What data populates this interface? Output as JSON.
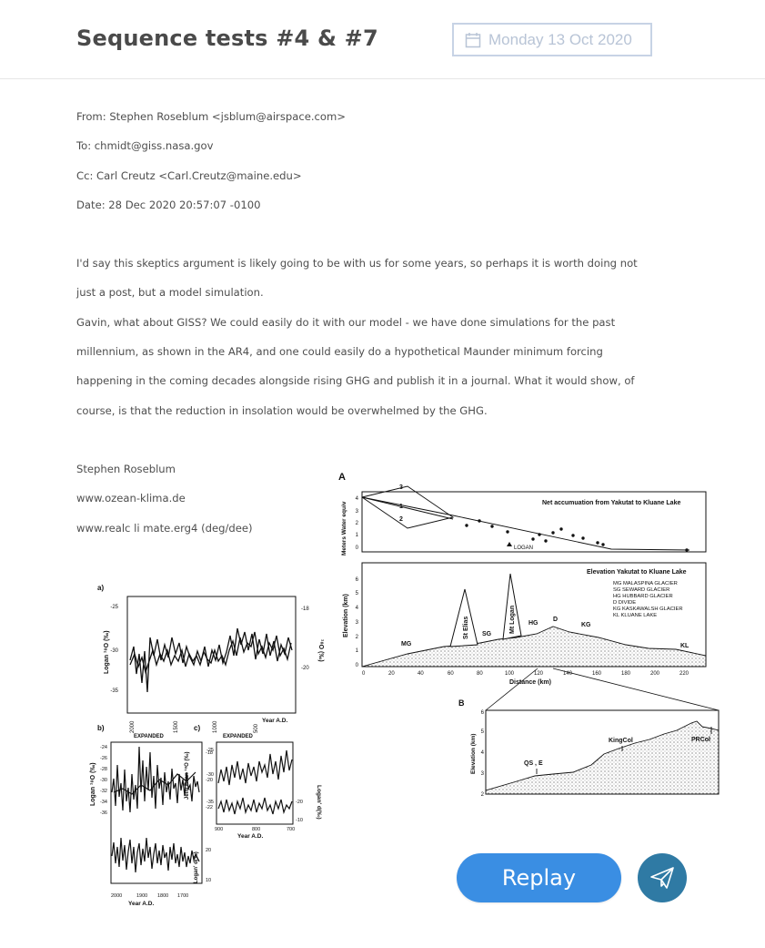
{
  "header": {
    "title": "Sequence tests #4 & #7",
    "date": "Monday 13 Oct 2020"
  },
  "email": {
    "from": "From: Stephen Roseblum <jsblum@airspace.com>",
    "to": "To: chmidt@giss.nasa.gov",
    "cc": "Cc: Carl Creutz <Carl.Creutz@maine.edu>",
    "date": "Date: 28 Dec 2020 20:57:07 -0100",
    "body": [
      "I'd say this skeptics argument is likely going to be with us for some years, so perhaps it is worth doing not",
      "just a post, but a model simulation.",
      "Gavin, what about GISS? We could easily do it with our model - we have done simulations for the past",
      "millennium, as shown in the AR4, and one could easily do a hypothetical Maunder minimum forcing",
      "happening in the coming decades alongside rising GHG and publish it in a journal. What it would show, of",
      "course, is that the reduction in insolation would be overwhelmed by the GHG."
    ],
    "signature": [
      "Stephen Roseblum",
      "www.ozean-klima.de",
      "www.realc li mate.erg4 (deg/dee)"
    ]
  },
  "figure_left": {
    "panel_a": "a)",
    "panel_b": "b)",
    "panel_c": "c)",
    "expanded_b": "EXPANDED",
    "expanded_c": "EXPANDED",
    "ylabel_a": "Logan ¹⁸O (‰)",
    "ylabel_a_right": "¹⁸O (‰)",
    "ylabel_b": "Logan ¹⁸O (‰)",
    "ylabel_b_right": "Jelly Bean ¹⁸O (‰)",
    "ylabel_b2": "Logan' d(‰)",
    "ylabel_c": "Logan' d(‰)",
    "xlabel": "Year A.D.",
    "a_yticks": [
      "-25",
      "-30",
      "-35"
    ],
    "a_yticks_right": [
      "-18",
      "-20"
    ],
    "a_xticks": [
      "2000",
      "1500",
      "1000",
      "500"
    ],
    "b_yticks": [
      "-24",
      "-26",
      "-28",
      "-30",
      "-32",
      "-34",
      "-36"
    ],
    "b_yticks_right": [
      "-18",
      "-20",
      "-22"
    ],
    "b_yticks_lower": [
      "20",
      "10"
    ],
    "b_xticks": [
      "2000",
      "1900",
      "1800",
      "1700"
    ],
    "c_yticks": [
      "-25",
      "-30",
      "-35"
    ],
    "c_yticks_right": [
      "-20",
      "-10"
    ],
    "c_xticks": [
      "900",
      "800",
      "700"
    ]
  },
  "figure_right": {
    "label_a": "A",
    "label_b": "B",
    "title_top": "Net accumuation from Yakutat to Kluane Lake",
    "ylabel_top": "Meters Water equiv",
    "top_yticks": [
      "4",
      "3",
      "2",
      "1",
      "0"
    ],
    "lines": [
      "3",
      "1",
      "2"
    ],
    "logan_marker": "LOGAN",
    "title_mid": "Elevation Yakutat to Kluane Lake",
    "ylabel_mid": "Elevation (km)",
    "mid_yticks": [
      "6",
      "5",
      "4",
      "3",
      "2",
      "1",
      "0"
    ],
    "legend": [
      "MG MALASPINA GLACIER",
      "SG SEWARD GLACIER",
      "HG HUBBARD GLACIER",
      "D   DIVIDE",
      "KG KASKAWALSH GLACIER",
      "KL  KLUANE LAKE"
    ],
    "peaks": {
      "mg": "MG",
      "st_elias": "St Elias",
      "sg": "SG",
      "mt_logan": "Mt Logan",
      "hg": "HG",
      "d": "D",
      "kg": "KG",
      "kl": "KL"
    },
    "xticks": [
      "0",
      "20",
      "40",
      "60",
      "80",
      "100",
      "120",
      "140",
      "160",
      "180",
      "200",
      "220"
    ],
    "xlabel": "Distance  (km)",
    "ylabel_b": "Elevation (km)",
    "b_yticks": [
      "6",
      "5",
      "4",
      "3",
      "2"
    ],
    "b_labels": {
      "qs": "QS , E",
      "king": "KingCol",
      "pr": "PRCol"
    }
  },
  "actions": {
    "replay": "Replay"
  },
  "icons": {
    "date": "calendar-icon",
    "send": "paper-plane-icon"
  },
  "colors": {
    "replay": "#3a8ee3",
    "send": "#2f7aa4",
    "date_border": "#c7d3e5"
  }
}
